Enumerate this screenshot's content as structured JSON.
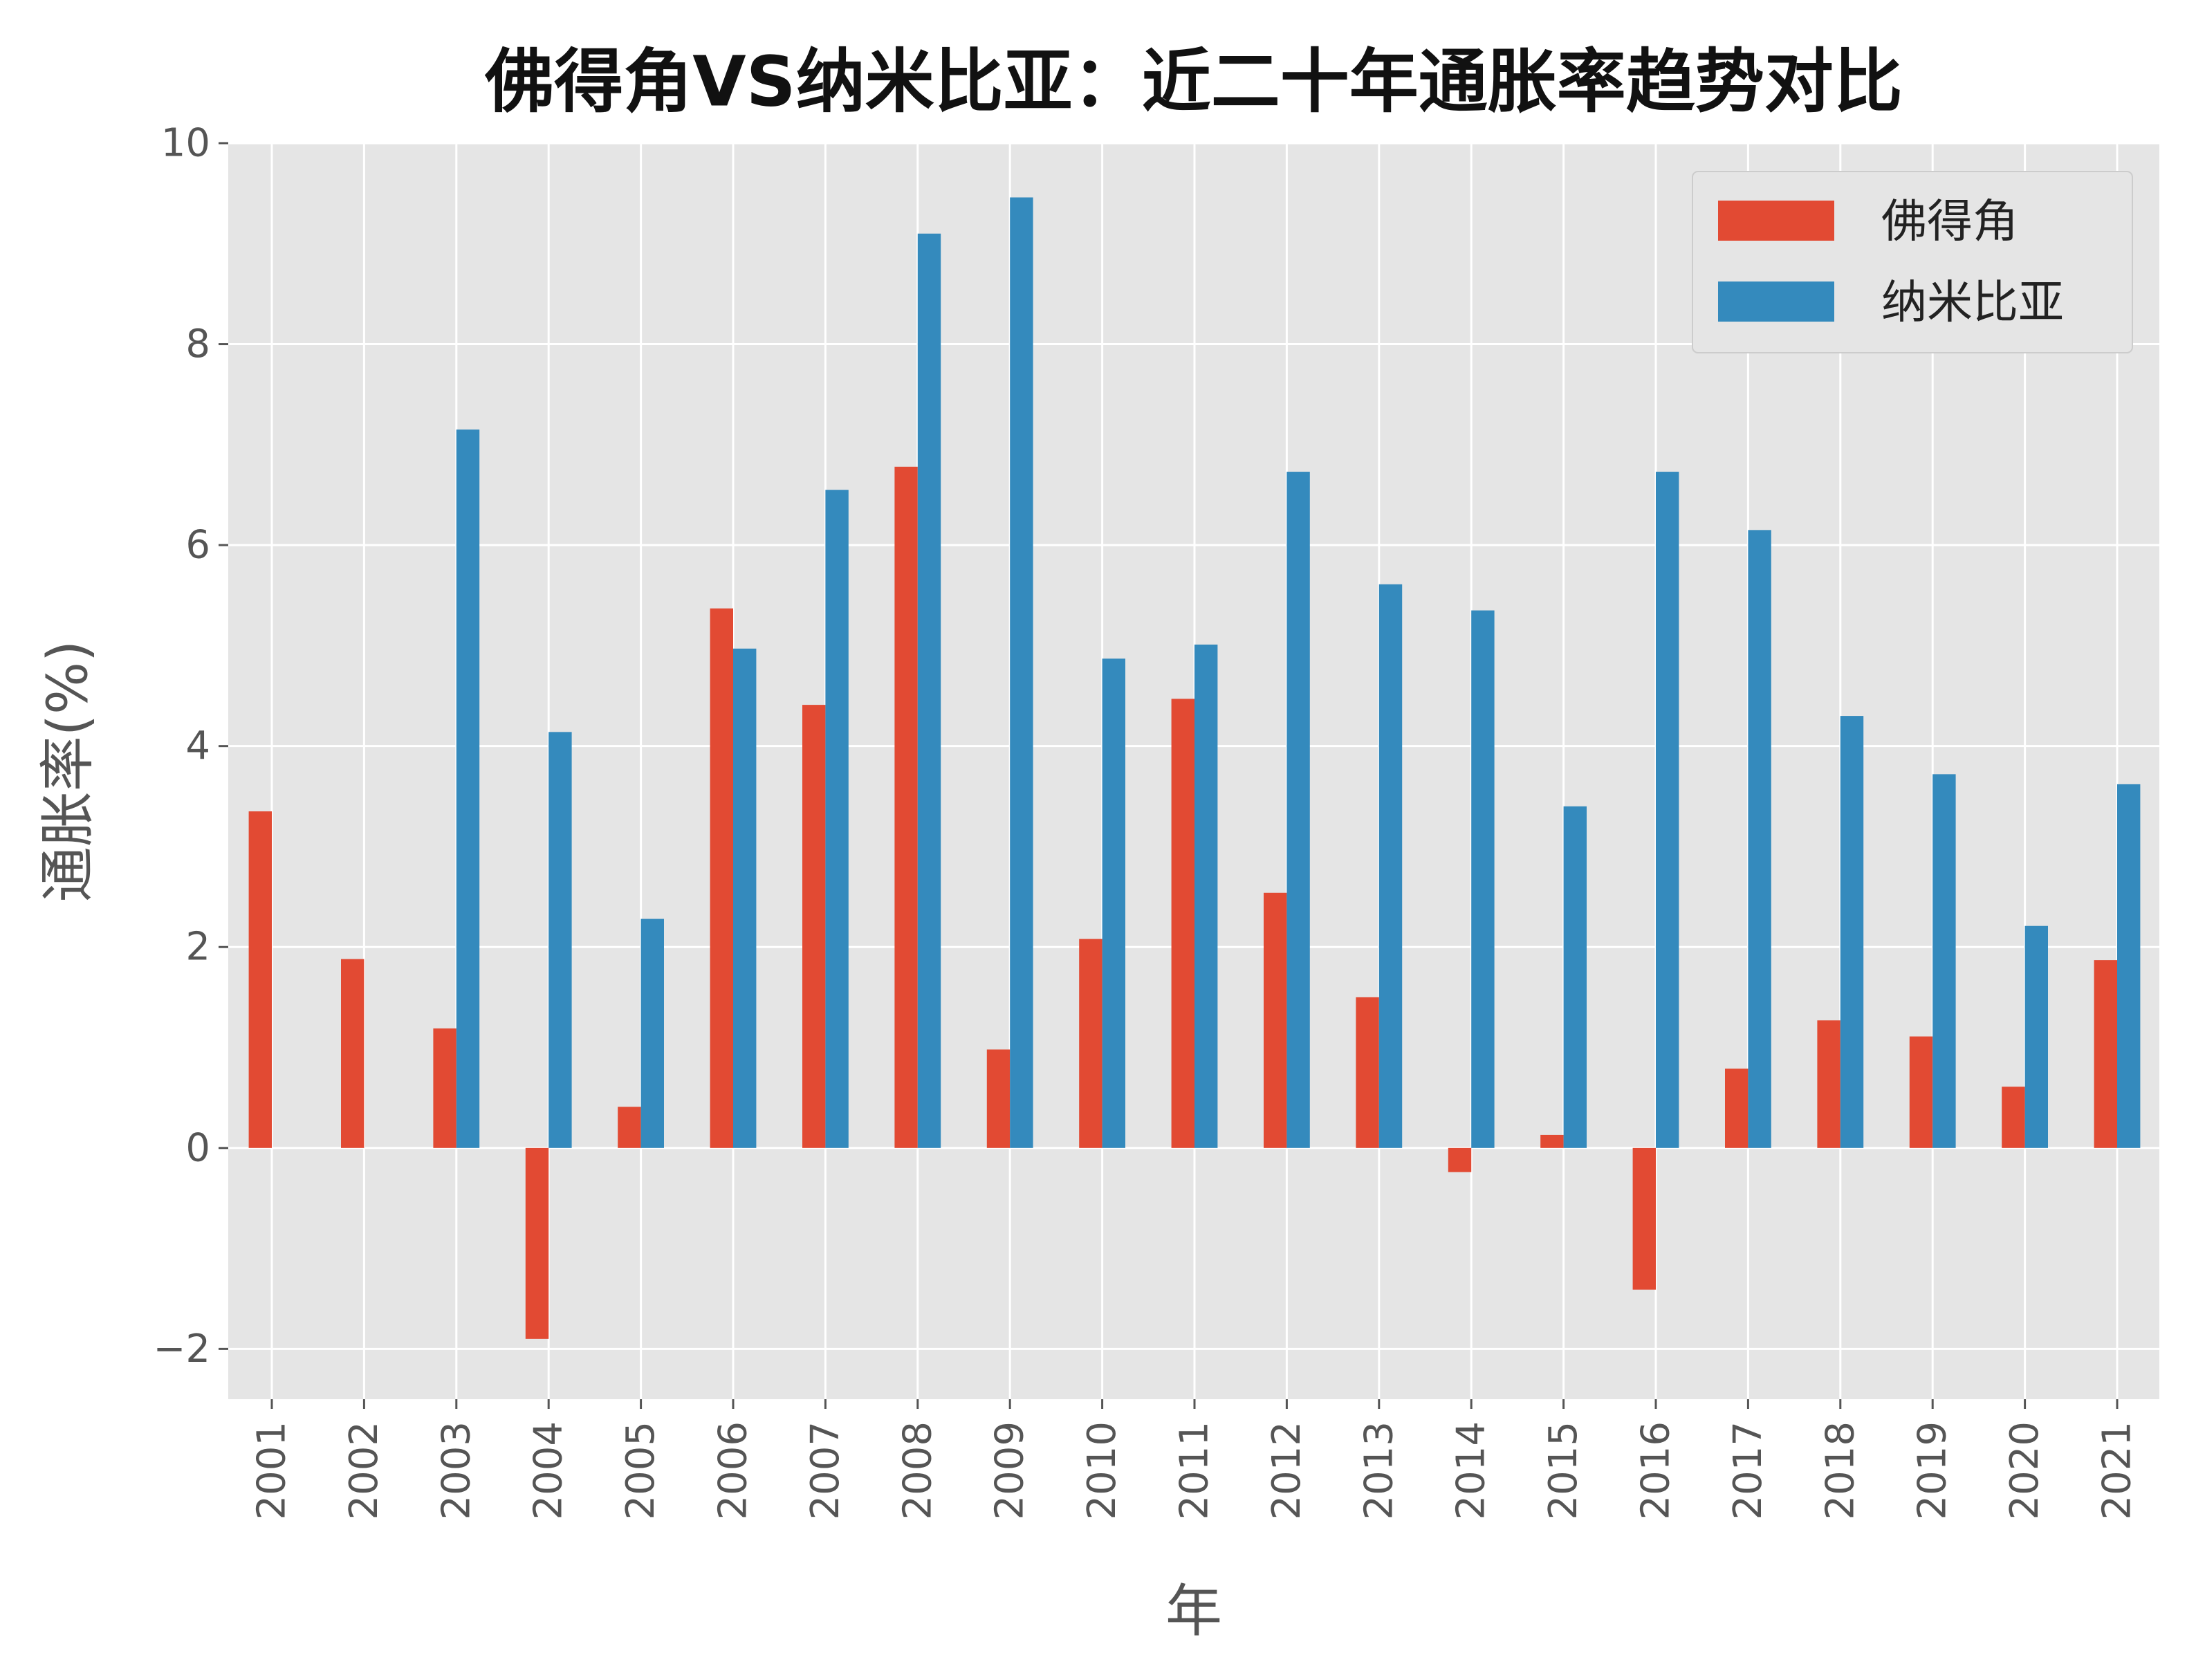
{
  "chart_data": {
    "type": "bar",
    "title": "佛得角VS纳米比亚：近二十年通胀率趋势对比",
    "xlabel": "年",
    "ylabel": "通胀率(%)",
    "ylim": [
      -2.5,
      10
    ],
    "yticks": [
      -2,
      0,
      2,
      4,
      6,
      8,
      10
    ],
    "ytick_labels": [
      "−2",
      "0",
      "2",
      "4",
      "6",
      "8",
      "10"
    ],
    "grid": true,
    "legend_position": "top-right",
    "categories": [
      "2001",
      "2002",
      "2003",
      "2004",
      "2005",
      "2006",
      "2007",
      "2008",
      "2009",
      "2010",
      "2011",
      "2012",
      "2013",
      "2014",
      "2015",
      "2016",
      "2017",
      "2018",
      "2019",
      "2020",
      "2021"
    ],
    "series": [
      {
        "name": "佛得角",
        "color": "#E24A33",
        "values": [
          3.35,
          1.88,
          1.19,
          -1.9,
          0.41,
          5.37,
          4.41,
          6.78,
          0.98,
          2.08,
          4.47,
          2.54,
          1.5,
          -0.24,
          0.13,
          -1.41,
          0.79,
          1.27,
          1.11,
          0.61,
          1.87
        ]
      },
      {
        "name": "纳米比亚",
        "color": "#348ABD",
        "values": [
          null,
          null,
          7.15,
          4.14,
          2.28,
          4.97,
          6.55,
          9.1,
          9.46,
          4.87,
          5.01,
          6.73,
          5.61,
          5.35,
          3.4,
          6.73,
          6.15,
          4.3,
          3.72,
          2.21,
          3.62
        ]
      }
    ]
  }
}
